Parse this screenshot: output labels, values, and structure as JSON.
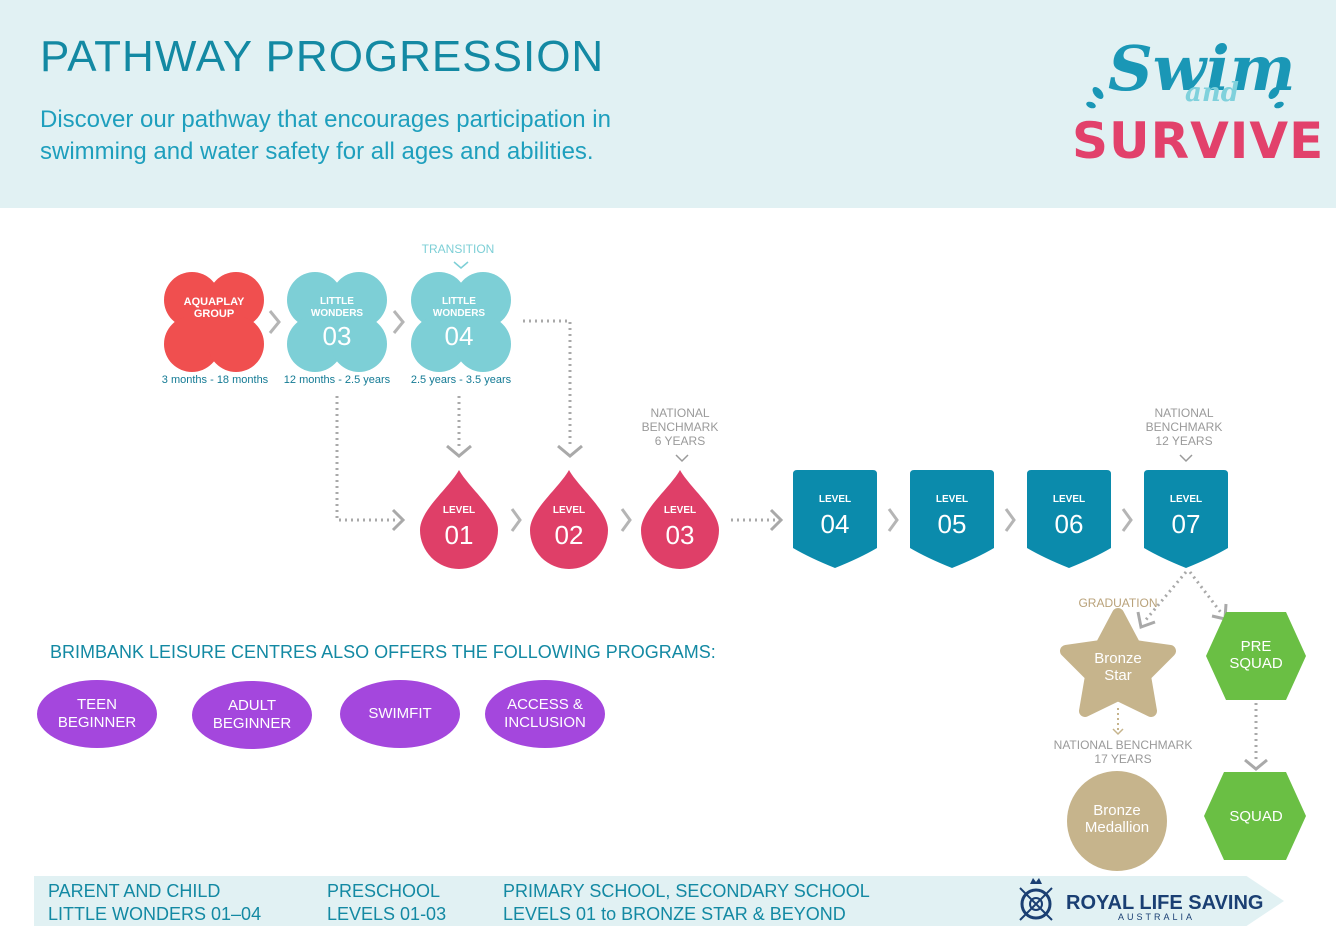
{
  "header": {
    "title": "PATHWAY PROGRESSION",
    "subtitle": "Discover our pathway that encourages participation in swimming and water safety for all ages and abilities."
  },
  "logo": {
    "swim": "Swim",
    "and": "and",
    "survive": "SURVIVE"
  },
  "colors": {
    "header_bg": "#e1f1f3",
    "teal": "#1389a3",
    "aqua": "#7dcfd6",
    "red": "#f04f4f",
    "pink": "#df3f68",
    "blue": "#0b8bac",
    "tan": "#c6b48c",
    "green": "#6abf44",
    "purple": "#a447dd"
  },
  "early": [
    {
      "small": "AQUAPLAY GROUP",
      "big": "",
      "age": "3 months - 18 months"
    },
    {
      "small": "LITTLE WONDERS",
      "big": "03",
      "age": "12 months - 2.5 years"
    },
    {
      "small": "LITTLE WONDERS",
      "big": "04",
      "age": "2.5 years - 3.5 years"
    }
  ],
  "transition": "TRANSITION",
  "preschool_levels": [
    {
      "small": "LEVEL",
      "big": "01"
    },
    {
      "small": "LEVEL",
      "big": "02"
    },
    {
      "small": "LEVEL",
      "big": "03"
    }
  ],
  "school_levels": [
    {
      "small": "LEVEL",
      "big": "04"
    },
    {
      "small": "LEVEL",
      "big": "05"
    },
    {
      "small": "LEVEL",
      "big": "06"
    },
    {
      "small": "LEVEL",
      "big": "07"
    }
  ],
  "benchmarks": {
    "six": "NATIONAL BENCHMARK 6 YEARS",
    "twelve": "NATIONAL BENCHMARK 12 YEARS",
    "seventeen": "NATIONAL BENCHMARK 17 YEARS"
  },
  "graduation": "GRADUATION",
  "advanced": {
    "bronze_star": "Bronze Star",
    "bronze_medallion": "Bronze Medallion",
    "pre_squad": "PRE SQUAD",
    "squad": "SQUAD"
  },
  "also_offers": {
    "heading": "BRIMBANK LEISURE CENTRES ALSO OFFERS THE FOLLOWING PROGRAMS:",
    "programs": [
      "TEEN BEGINNER",
      "ADULT BEGINNER",
      "SWIMFIT",
      "ACCESS & INCLUSION"
    ]
  },
  "footer": {
    "col1_line1": "PARENT AND CHILD",
    "col1_line2": "LITTLE WONDERS 01–04",
    "col2_line1": "PRESCHOOL",
    "col2_line2": "LEVELS 01-03",
    "col3_line1": "PRIMARY SCHOOL, SECONDARY SCHOOL",
    "col3_line2": "LEVELS 01 to BRONZE STAR & BEYOND",
    "org_name": "ROYAL LIFE SAVING",
    "org_sub": "AUSTRALIA"
  }
}
